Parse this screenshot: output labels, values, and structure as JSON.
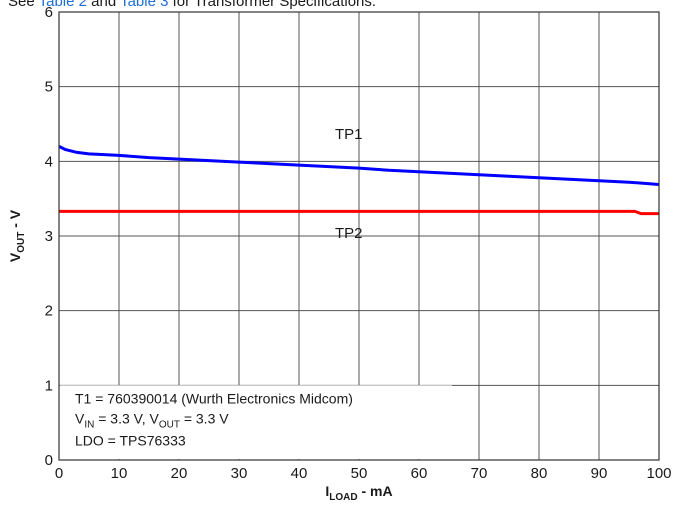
{
  "caption": {
    "prefix": "See",
    "link1": "Table 2",
    "mid": "and",
    "link2": "Table 3",
    "suffix": "for Transformer Specifications."
  },
  "chart_data": {
    "type": "line",
    "xlabel": {
      "main": "I",
      "sub": "LOAD",
      "unit": " - mA"
    },
    "ylabel": {
      "main": "V",
      "sub": "OUT",
      "unit": " - V"
    },
    "xlim": [
      0,
      100
    ],
    "ylim": [
      0,
      6
    ],
    "xticks": [
      "0",
      "10",
      "20",
      "30",
      "40",
      "50",
      "60",
      "70",
      "80",
      "90",
      "100"
    ],
    "yticks": [
      "0",
      "1",
      "2",
      "3",
      "4",
      "5",
      "6"
    ],
    "grid": true,
    "series": [
      {
        "name": "TP1",
        "color": "#0000ff",
        "x": [
          0,
          1,
          3,
          5,
          10,
          15,
          20,
          25,
          30,
          35,
          40,
          45,
          50,
          55,
          60,
          65,
          70,
          75,
          80,
          85,
          90,
          95,
          100
        ],
        "y": [
          4.2,
          4.16,
          4.12,
          4.1,
          4.08,
          4.05,
          4.03,
          4.01,
          3.99,
          3.97,
          3.95,
          3.93,
          3.91,
          3.88,
          3.86,
          3.84,
          3.82,
          3.8,
          3.78,
          3.76,
          3.74,
          3.72,
          3.69
        ]
      },
      {
        "name": "TP2",
        "color": "#ff0000",
        "x": [
          0,
          10,
          20,
          30,
          40,
          50,
          60,
          70,
          80,
          90,
          96,
          97,
          100
        ],
        "y": [
          3.33,
          3.33,
          3.33,
          3.33,
          3.33,
          3.33,
          3.33,
          3.33,
          3.33,
          3.33,
          3.33,
          3.3,
          3.3
        ]
      }
    ],
    "annotations": {
      "tp1": {
        "text": "TP1",
        "x": 46,
        "y": 4.3
      },
      "tp2": {
        "text": "TP2",
        "x": 46,
        "y": 2.97
      }
    },
    "note": {
      "line1": "T1 = 760390014 (Wurth Electronics Midcom)",
      "line2_a": "V",
      "line2_a_sub": "IN",
      "line2_b": " = 3.3 V, V",
      "line2_b_sub": "OUT",
      "line2_c": " = 3.3 V",
      "line3": "LDO = TPS76333"
    }
  }
}
